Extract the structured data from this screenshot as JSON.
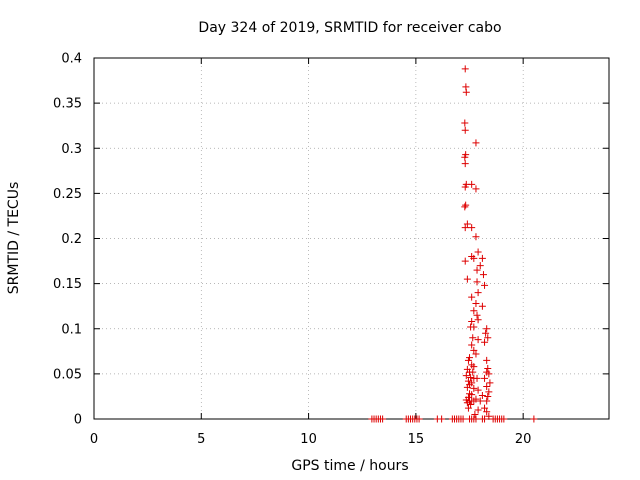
{
  "chart_data": {
    "type": "scatter",
    "title": "Day 324 of 2019, SRMTID for receiver cabo",
    "xlabel": "GPS time / hours",
    "ylabel": "SRMTID / TECUs",
    "xlim": [
      0,
      24
    ],
    "ylim": [
      0,
      0.4
    ],
    "xticks": [
      0,
      5,
      10,
      15,
      20
    ],
    "xtick_labels": [
      "0",
      "5",
      "10",
      "15",
      "20"
    ],
    "yticks": [
      0,
      0.05,
      0.1,
      0.15,
      0.2,
      0.25,
      0.3,
      0.35,
      0.4
    ],
    "ytick_labels": [
      "0",
      "0.05",
      "0.1",
      "0.15",
      "0.2",
      "0.25",
      "0.3",
      "0.35",
      "0.4"
    ],
    "grid": true,
    "marker": "+",
    "color": "#dd0000",
    "series": [
      {
        "name": "SRMTID",
        "points": [
          [
            12.95,
            0
          ],
          [
            13.05,
            0
          ],
          [
            13.15,
            0
          ],
          [
            13.25,
            0
          ],
          [
            13.35,
            0
          ],
          [
            13.45,
            0
          ],
          [
            14.55,
            0
          ],
          [
            14.65,
            0
          ],
          [
            14.75,
            0
          ],
          [
            14.85,
            0
          ],
          [
            14.95,
            0
          ],
          [
            15.05,
            0
          ],
          [
            15.15,
            0
          ],
          [
            16.0,
            0
          ],
          [
            16.2,
            0
          ],
          [
            16.7,
            0
          ],
          [
            16.8,
            0
          ],
          [
            16.9,
            0
          ],
          [
            17.0,
            0
          ],
          [
            17.1,
            0
          ],
          [
            17.2,
            0
          ],
          [
            17.5,
            0
          ],
          [
            17.6,
            0
          ],
          [
            17.7,
            0
          ],
          [
            17.8,
            0
          ],
          [
            18.1,
            0
          ],
          [
            18.2,
            0
          ],
          [
            18.6,
            0
          ],
          [
            18.7,
            0
          ],
          [
            18.8,
            0
          ],
          [
            18.9,
            0
          ],
          [
            19.0,
            0
          ],
          [
            19.1,
            0
          ],
          [
            20.5,
            0
          ],
          [
            17.3,
            0.388
          ],
          [
            17.33,
            0.368
          ],
          [
            17.35,
            0.362
          ],
          [
            17.28,
            0.328
          ],
          [
            17.3,
            0.32
          ],
          [
            17.8,
            0.306
          ],
          [
            17.32,
            0.293
          ],
          [
            17.28,
            0.29
          ],
          [
            17.3,
            0.283
          ],
          [
            17.35,
            0.26
          ],
          [
            17.3,
            0.257
          ],
          [
            17.6,
            0.26
          ],
          [
            17.8,
            0.255
          ],
          [
            17.32,
            0.237
          ],
          [
            17.28,
            0.235
          ],
          [
            17.4,
            0.216
          ],
          [
            17.3,
            0.212
          ],
          [
            17.6,
            0.212
          ],
          [
            17.8,
            0.202
          ],
          [
            17.9,
            0.185
          ],
          [
            17.6,
            0.18
          ],
          [
            17.7,
            0.178
          ],
          [
            17.3,
            0.175
          ],
          [
            18.1,
            0.178
          ],
          [
            18.0,
            0.17
          ],
          [
            17.85,
            0.165
          ],
          [
            18.15,
            0.16
          ],
          [
            17.4,
            0.155
          ],
          [
            17.85,
            0.152
          ],
          [
            18.2,
            0.148
          ],
          [
            17.9,
            0.14
          ],
          [
            17.6,
            0.135
          ],
          [
            17.8,
            0.128
          ],
          [
            18.1,
            0.125
          ],
          [
            17.7,
            0.12
          ],
          [
            17.85,
            0.115
          ],
          [
            17.9,
            0.11
          ],
          [
            17.6,
            0.108
          ],
          [
            17.55,
            0.102
          ],
          [
            17.7,
            0.102
          ],
          [
            18.3,
            0.1
          ],
          [
            18.25,
            0.095
          ],
          [
            18.35,
            0.09
          ],
          [
            17.65,
            0.09
          ],
          [
            17.9,
            0.088
          ],
          [
            18.2,
            0.085
          ],
          [
            17.6,
            0.082
          ],
          [
            17.7,
            0.076
          ],
          [
            17.8,
            0.072
          ],
          [
            17.5,
            0.068
          ],
          [
            17.45,
            0.065
          ],
          [
            18.3,
            0.065
          ],
          [
            17.6,
            0.06
          ],
          [
            17.7,
            0.058
          ],
          [
            18.35,
            0.056
          ],
          [
            17.4,
            0.055
          ],
          [
            17.5,
            0.052
          ],
          [
            17.65,
            0.052
          ],
          [
            18.3,
            0.052
          ],
          [
            18.4,
            0.05
          ],
          [
            17.35,
            0.048
          ],
          [
            17.55,
            0.046
          ],
          [
            17.7,
            0.045
          ],
          [
            17.85,
            0.045
          ],
          [
            18.2,
            0.045
          ],
          [
            17.45,
            0.042
          ],
          [
            17.6,
            0.04
          ],
          [
            18.45,
            0.04
          ],
          [
            17.5,
            0.038
          ],
          [
            18.3,
            0.036
          ],
          [
            17.4,
            0.035
          ],
          [
            17.7,
            0.034
          ],
          [
            17.9,
            0.032
          ],
          [
            18.4,
            0.03
          ],
          [
            17.5,
            0.028
          ],
          [
            17.6,
            0.027
          ],
          [
            18.1,
            0.026
          ],
          [
            18.35,
            0.025
          ],
          [
            17.45,
            0.024
          ],
          [
            17.8,
            0.022
          ],
          [
            17.35,
            0.021
          ],
          [
            17.5,
            0.02
          ],
          [
            17.6,
            0.02
          ],
          [
            17.7,
            0.02
          ],
          [
            18.0,
            0.02
          ],
          [
            18.3,
            0.02
          ],
          [
            17.4,
            0.018
          ],
          [
            17.55,
            0.016
          ],
          [
            17.45,
            0.012
          ],
          [
            18.2,
            0.012
          ],
          [
            17.9,
            0.01
          ],
          [
            18.3,
            0.008
          ],
          [
            17.75,
            0.005
          ],
          [
            18.4,
            0.003
          ]
        ]
      }
    ]
  }
}
